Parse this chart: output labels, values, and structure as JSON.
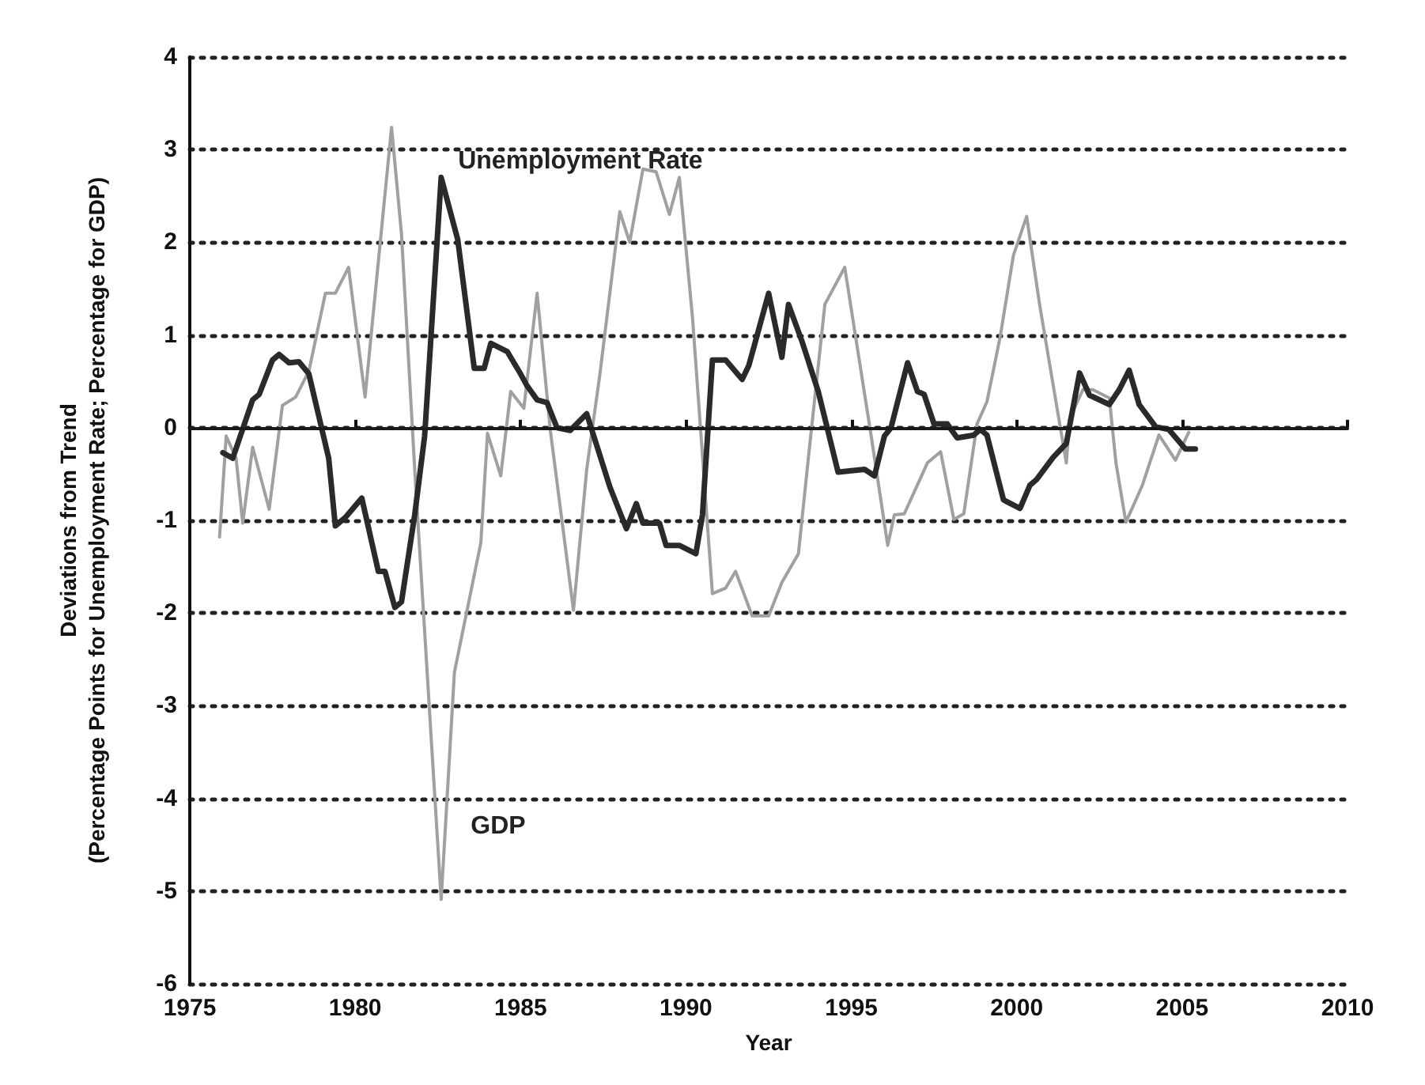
{
  "chart_data": {
    "type": "line",
    "xlabel": "Year",
    "ylabel": "Deviations from Trend\n(Percentage Points for Unemployment Rate; Percentage for GDP)",
    "xlim": [
      1975,
      2010
    ],
    "xticks": [
      1975,
      1980,
      1985,
      1990,
      1995,
      2000,
      2005,
      2010
    ],
    "ylim": [
      -6,
      4
    ],
    "yticks": [
      -6,
      -5,
      -4,
      -3,
      -2,
      -1,
      0,
      1,
      2,
      3,
      4
    ],
    "grid": "y",
    "legend": false,
    "marker": "none",
    "line_style": "solid",
    "ref_lines": [
      {
        "axis": "y",
        "value": 0,
        "color": "#1a1a1a",
        "line_style": "solid"
      }
    ],
    "series": [
      {
        "name": "GDP",
        "color": "#a0a0a0",
        "x": [
          1975.9,
          1976.1,
          1976.4,
          1976.6,
          1976.9,
          1977.4,
          1977.8,
          1978.2,
          1978.6,
          1979.1,
          1979.4,
          1979.8,
          1980.3,
          1980.7,
          1981.1,
          1981.4,
          1981.8,
          1982.3,
          1982.6,
          1983.0,
          1983.8,
          1984.0,
          1984.4,
          1984.7,
          1985.1,
          1985.5,
          1985.9,
          1986.6,
          1987.0,
          1987.4,
          1988.0,
          1988.3,
          1988.7,
          1989.1,
          1989.5,
          1989.8,
          1990.2,
          1990.8,
          1991.2,
          1991.5,
          1992.0,
          1992.5,
          1992.9,
          1993.4,
          1993.7,
          1994.2,
          1994.8,
          1995.6,
          1996.1,
          1996.3,
          1996.6,
          1997.3,
          1997.7,
          1998.1,
          1998.4,
          1998.8,
          1999.1,
          1999.5,
          1999.9,
          2000.3,
          2000.7,
          2001.3,
          2001.5,
          2001.6,
          2002.0,
          2002.3,
          2002.8,
          2003.0,
          2003.3,
          2003.8,
          2004.3,
          2004.8,
          2005.2
        ],
        "values": [
          -1.18,
          -0.09,
          -0.33,
          -1.03,
          -0.21,
          -0.88,
          0.24,
          0.33,
          0.61,
          1.45,
          1.45,
          1.73,
          0.33,
          1.79,
          3.24,
          2.09,
          -0.45,
          -3.36,
          -5.09,
          -2.64,
          -1.24,
          -0.06,
          -0.52,
          0.39,
          0.21,
          1.45,
          -0.03,
          -1.97,
          -0.45,
          0.58,
          2.33,
          2.0,
          2.79,
          2.76,
          2.3,
          2.7,
          1.18,
          -1.79,
          -1.73,
          -1.55,
          -2.03,
          -2.03,
          -1.67,
          -1.36,
          -0.33,
          1.33,
          1.73,
          -0.09,
          -1.27,
          -0.94,
          -0.93,
          -0.38,
          -0.26,
          -0.99,
          -0.93,
          0.04,
          0.28,
          0.98,
          1.86,
          2.28,
          1.31,
          0.04,
          -0.38,
          0.1,
          0.41,
          0.41,
          0.32,
          -0.38,
          -1.02,
          -0.62,
          -0.08,
          -0.35,
          -0.05
        ]
      },
      {
        "name": "Unemployment Rate",
        "color": "#2a2a2a",
        "x": [
          1976.0,
          1976.3,
          1976.9,
          1977.1,
          1977.5,
          1977.7,
          1978.0,
          1978.3,
          1978.6,
          1979.2,
          1979.4,
          1979.7,
          1980.2,
          1980.7,
          1980.9,
          1981.2,
          1981.4,
          1981.8,
          1982.1,
          1982.6,
          1983.1,
          1983.6,
          1983.9,
          1984.1,
          1984.6,
          1985.0,
          1985.2,
          1985.5,
          1985.8,
          1986.1,
          1986.5,
          1987.0,
          1987.7,
          1988.2,
          1988.5,
          1988.7,
          1989.2,
          1989.4,
          1989.8,
          1990.3,
          1990.5,
          1990.8,
          1991.2,
          1991.7,
          1991.9,
          1992.5,
          1992.9,
          1993.1,
          1993.5,
          1994.0,
          1994.6,
          1995.4,
          1995.7,
          1996.0,
          1996.2,
          1996.7,
          1997.0,
          1997.2,
          1997.5,
          1997.9,
          1998.2,
          1998.7,
          1998.9,
          1999.1,
          1999.6,
          2000.1,
          2000.4,
          2000.6,
          2001.1,
          2001.5,
          2001.9,
          2002.2,
          2002.8,
          2003.1,
          2003.4,
          2003.7,
          2004.2,
          2004.6,
          2005.1,
          2005.4
        ],
        "values": [
          -0.27,
          -0.33,
          0.3,
          0.36,
          0.73,
          0.79,
          0.7,
          0.71,
          0.58,
          -0.33,
          -1.06,
          -0.97,
          -0.76,
          -1.55,
          -1.55,
          -1.94,
          -1.88,
          -0.94,
          -0.09,
          2.7,
          2.03,
          0.64,
          0.64,
          0.91,
          0.82,
          0.58,
          0.45,
          0.3,
          0.27,
          0.0,
          -0.03,
          0.15,
          -0.64,
          -1.09,
          -0.82,
          -1.03,
          -1.03,
          -1.27,
          -1.27,
          -1.36,
          -0.94,
          0.73,
          0.73,
          0.52,
          0.67,
          1.45,
          0.76,
          1.33,
          0.94,
          0.39,
          -0.48,
          -0.45,
          -0.52,
          -0.09,
          0.0,
          0.7,
          0.39,
          0.36,
          0.04,
          0.04,
          -0.11,
          -0.08,
          -0.02,
          -0.08,
          -0.78,
          -0.87,
          -0.62,
          -0.56,
          -0.32,
          -0.17,
          0.59,
          0.35,
          0.25,
          0.41,
          0.62,
          0.25,
          0.01,
          -0.02,
          -0.23,
          -0.23
        ]
      }
    ]
  }
}
